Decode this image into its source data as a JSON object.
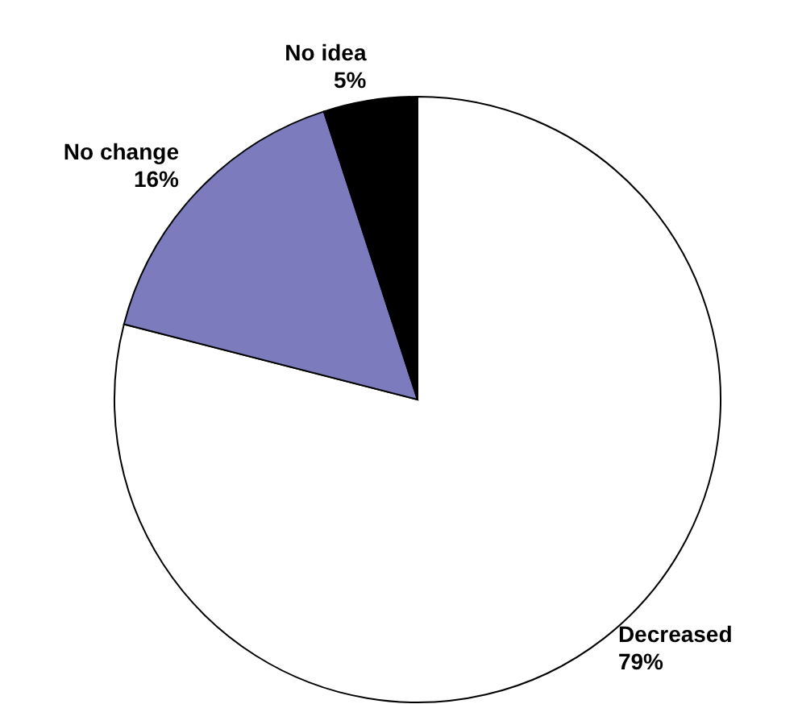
{
  "chart_data": {
    "type": "pie",
    "categories": [
      "Decreased",
      "No change",
      "No idea"
    ],
    "values": [
      79,
      16,
      5
    ],
    "colors": [
      "#ffffff",
      "#7b7bbd",
      "#000000"
    ],
    "value_labels": [
      "79%",
      "16%",
      "5%"
    ]
  }
}
